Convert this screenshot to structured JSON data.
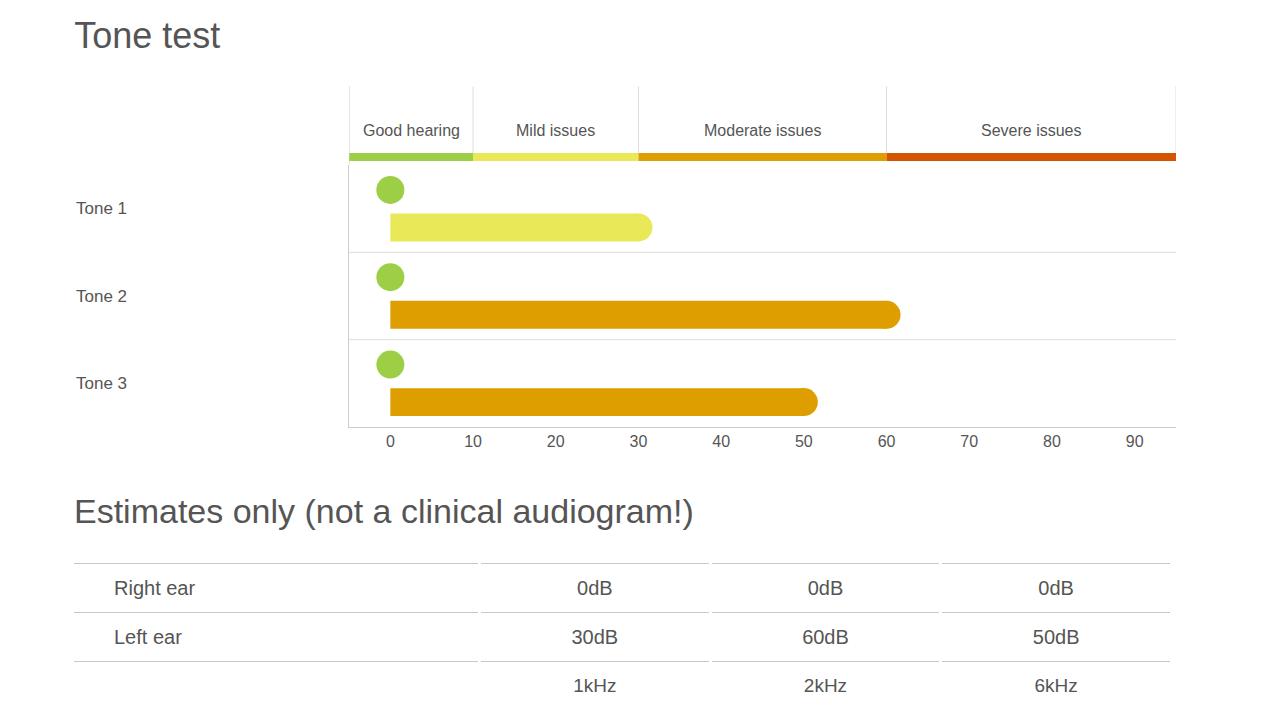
{
  "chart_data": {
    "type": "bar",
    "title": "Tone test",
    "orientation": "horizontal",
    "categories": [
      "Tone 1",
      "Tone 2",
      "Tone 3"
    ],
    "series": [
      {
        "name": "Right ear",
        "values": [
          0,
          0,
          0
        ],
        "colors": [
          "#9ccf45",
          "#9ccf45",
          "#9ccf45"
        ]
      },
      {
        "name": "Left ear",
        "values": [
          30,
          60,
          50
        ],
        "colors": [
          "#e8e858",
          "#df9e00",
          "#df9e00"
        ]
      }
    ],
    "bands": [
      {
        "label": "Good hearing",
        "from": -5,
        "to": 10,
        "color": "#9ccf45"
      },
      {
        "label": "Mild issues",
        "from": 10,
        "to": 30,
        "color": "#e8e858"
      },
      {
        "label": "Moderate issues",
        "from": 30,
        "to": 60,
        "color": "#df9e00"
      },
      {
        "label": "Severe issues",
        "from": 60,
        "to": 95,
        "color": "#d45500"
      }
    ],
    "xlim": [
      -5,
      95
    ],
    "xticks": [
      0,
      10,
      20,
      30,
      40,
      50,
      60,
      70,
      80,
      90
    ],
    "grid": false
  },
  "table": {
    "title": "Estimates only (not a clinical audiogram!)",
    "columns": [
      "1kHz",
      "2kHz",
      "6kHz"
    ],
    "rows": [
      [
        "0dB",
        "0dB",
        "0dB"
      ],
      [
        "30dB",
        "60dB",
        "50dB"
      ]
    ]
  }
}
